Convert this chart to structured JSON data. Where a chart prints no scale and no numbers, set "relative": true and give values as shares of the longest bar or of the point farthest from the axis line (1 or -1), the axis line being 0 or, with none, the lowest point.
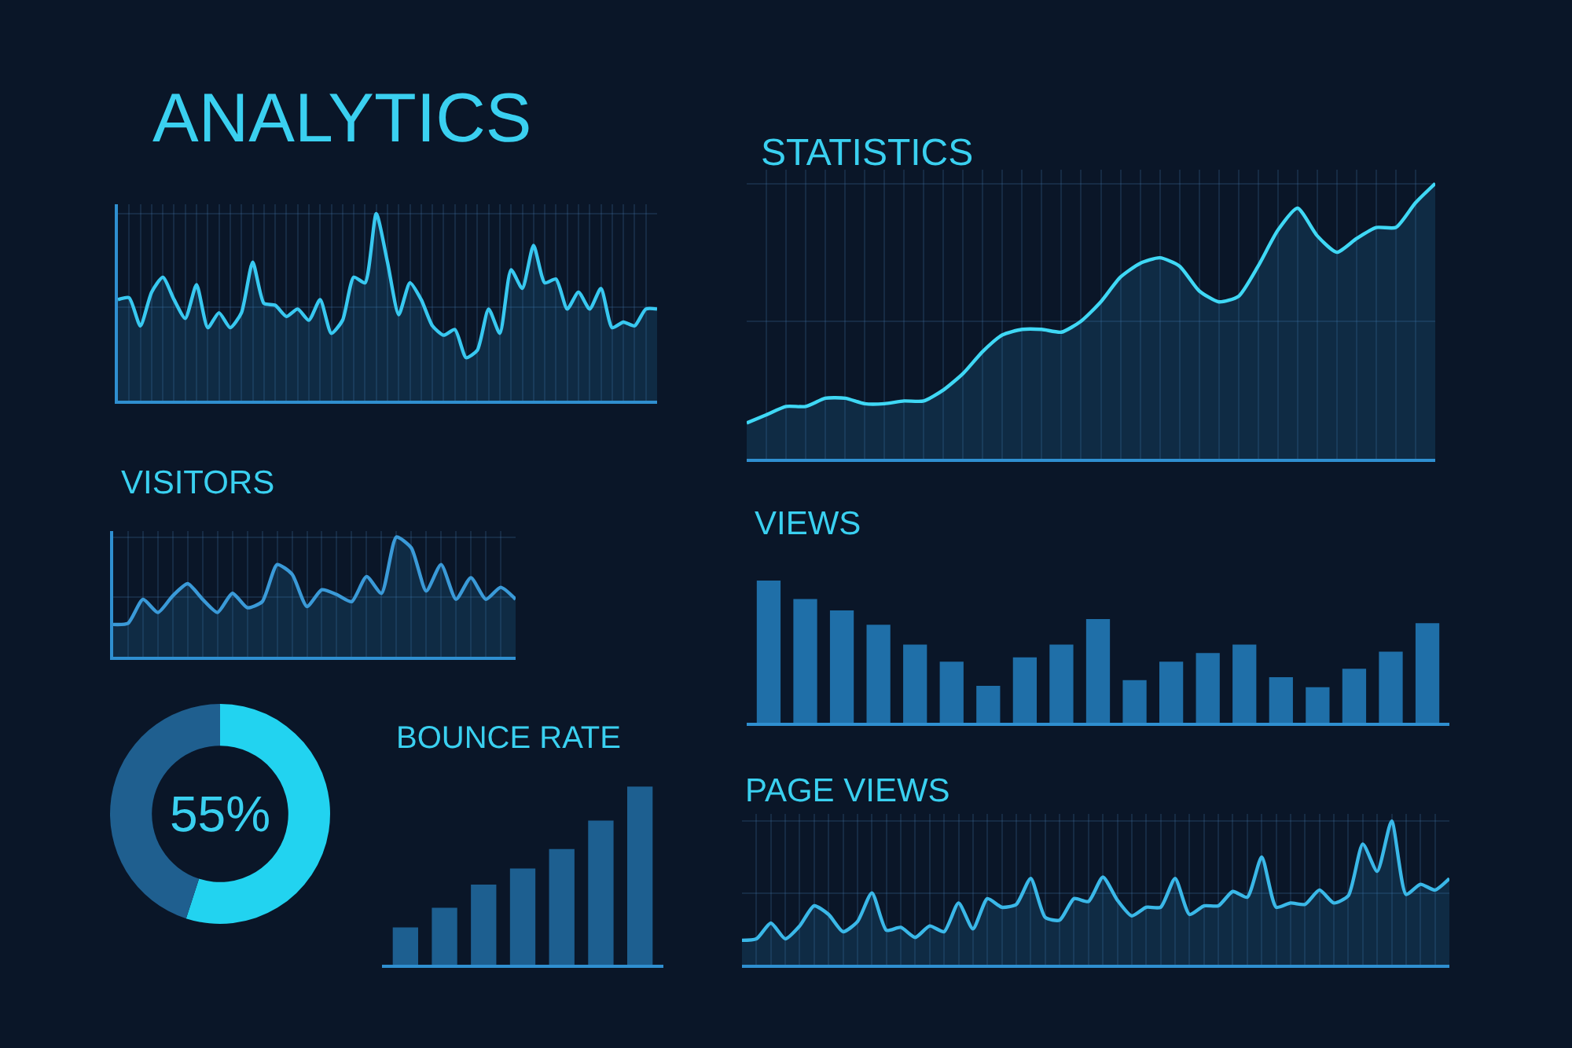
{
  "chart_data": [
    {
      "type": "area",
      "title": "ANALYTICS",
      "relative": true,
      "grid": true,
      "categories": [
        null,
        null,
        null,
        null,
        null,
        null,
        null,
        null,
        null,
        null,
        null,
        null,
        null,
        null,
        null,
        null,
        null,
        null,
        null,
        null,
        null,
        null,
        null,
        null,
        null,
        null,
        null,
        null,
        null,
        null,
        null,
        null,
        null,
        null,
        null,
        null,
        null,
        null,
        null,
        null,
        null,
        null,
        null,
        null,
        null,
        null,
        null,
        null,
        null
      ],
      "series": [
        {
          "color": "#38c8f0",
          "values": [
            0.54,
            0.55,
            0.4,
            0.58,
            0.66,
            0.54,
            0.44,
            0.62,
            0.39,
            0.47,
            0.39,
            0.47,
            0.74,
            0.52,
            0.51,
            0.45,
            0.49,
            0.43,
            0.54,
            0.36,
            0.43,
            0.66,
            0.63,
            1,
            0.74,
            0.46,
            0.63,
            0.54,
            0.4,
            0.35,
            0.38,
            0.23,
            0.27,
            0.49,
            0.36,
            0.7,
            0.6,
            0.83,
            0.63,
            0.65,
            0.49,
            0.58,
            0.49,
            0.6,
            0.39,
            0.42,
            0.4,
            0.49,
            0.49
          ]
        }
      ]
    },
    {
      "type": "area",
      "title": "STATISTICS",
      "relative": true,
      "grid": true,
      "categories": [
        null,
        null,
        null,
        null,
        null,
        null,
        null,
        null,
        null,
        null,
        null,
        null,
        null,
        null,
        null,
        null,
        null,
        null,
        null,
        null,
        null,
        null,
        null,
        null,
        null,
        null,
        null,
        null,
        null,
        null,
        null,
        null,
        null,
        null,
        null,
        null
      ],
      "series": [
        {
          "color": "#3fd8f5",
          "values": [
            0.13,
            0.16,
            0.19,
            0.19,
            0.22,
            0.22,
            0.2,
            0.2,
            0.21,
            0.21,
            0.25,
            0.31,
            0.39,
            0.45,
            0.47,
            0.47,
            0.46,
            0.5,
            0.57,
            0.66,
            0.71,
            0.73,
            0.7,
            0.61,
            0.57,
            0.59,
            0.7,
            0.83,
            0.91,
            0.81,
            0.75,
            0.8,
            0.84,
            0.84,
            0.93,
            1
          ]
        }
      ]
    },
    {
      "type": "area",
      "title": "VISITORS",
      "relative": true,
      "grid": true,
      "categories": [
        null,
        null,
        null,
        null,
        null,
        null,
        null,
        null,
        null,
        null,
        null,
        null,
        null,
        null,
        null,
        null,
        null,
        null,
        null,
        null,
        null,
        null,
        null,
        null,
        null,
        null,
        null,
        null
      ],
      "series": [
        {
          "color": "#3a9ad8",
          "values": [
            0.27,
            0.28,
            0.48,
            0.37,
            0.51,
            0.61,
            0.48,
            0.37,
            0.53,
            0.41,
            0.46,
            0.77,
            0.69,
            0.42,
            0.56,
            0.52,
            0.46,
            0.67,
            0.53,
            1,
            0.91,
            0.55,
            0.77,
            0.48,
            0.66,
            0.48,
            0.58,
            0.48
          ]
        }
      ]
    },
    {
      "type": "bar",
      "title": "VIEWS",
      "relative": true,
      "categories": [
        null,
        null,
        null,
        null,
        null,
        null,
        null,
        null,
        null,
        null,
        null,
        null,
        null,
        null,
        null,
        null,
        null,
        null,
        null
      ],
      "series": [
        {
          "color": "#1f6fa8",
          "values": [
            1,
            0.87,
            0.79,
            0.69,
            0.55,
            0.43,
            0.26,
            0.46,
            0.55,
            0.73,
            0.3,
            0.43,
            0.49,
            0.55,
            0.32,
            0.25,
            0.38,
            0.5,
            0.7
          ]
        }
      ]
    },
    {
      "type": "donut",
      "categories": [
        null,
        null
      ],
      "values": [
        55,
        45
      ],
      "colors": [
        "#22d3f0",
        "#1f5f8f"
      ],
      "annotations": [
        "55%"
      ]
    },
    {
      "type": "bar",
      "title": "BOUNCE RATE",
      "relative": true,
      "categories": [
        null,
        null,
        null,
        null,
        null,
        null,
        null
      ],
      "series": [
        {
          "color": "#1d5f90",
          "values": [
            0.21,
            0.32,
            0.45,
            0.54,
            0.65,
            0.81,
            1
          ]
        }
      ]
    },
    {
      "type": "area",
      "title": "PAGE VIEWS",
      "relative": true,
      "grid": true,
      "categories": [
        null,
        null,
        null,
        null,
        null,
        null,
        null,
        null,
        null,
        null,
        null,
        null,
        null,
        null,
        null,
        null,
        null,
        null,
        null,
        null,
        null,
        null,
        null,
        null,
        null,
        null,
        null,
        null,
        null,
        null,
        null,
        null,
        null,
        null,
        null,
        null,
        null,
        null,
        null,
        null,
        null,
        null,
        null,
        null,
        null,
        null,
        null,
        null,
        null,
        null
      ],
      "series": [
        {
          "color": "#3ab8e8",
          "values": [
            0.17,
            0.18,
            0.29,
            0.18,
            0.27,
            0.41,
            0.35,
            0.23,
            0.3,
            0.5,
            0.24,
            0.26,
            0.19,
            0.27,
            0.23,
            0.43,
            0.25,
            0.46,
            0.4,
            0.42,
            0.6,
            0.33,
            0.31,
            0.46,
            0.44,
            0.61,
            0.45,
            0.34,
            0.4,
            0.4,
            0.6,
            0.35,
            0.41,
            0.41,
            0.51,
            0.47,
            0.75,
            0.4,
            0.43,
            0.42,
            0.52,
            0.43,
            0.48,
            0.84,
            0.65,
            1,
            0.49,
            0.56,
            0.52,
            0.6
          ]
        }
      ]
    }
  ]
}
